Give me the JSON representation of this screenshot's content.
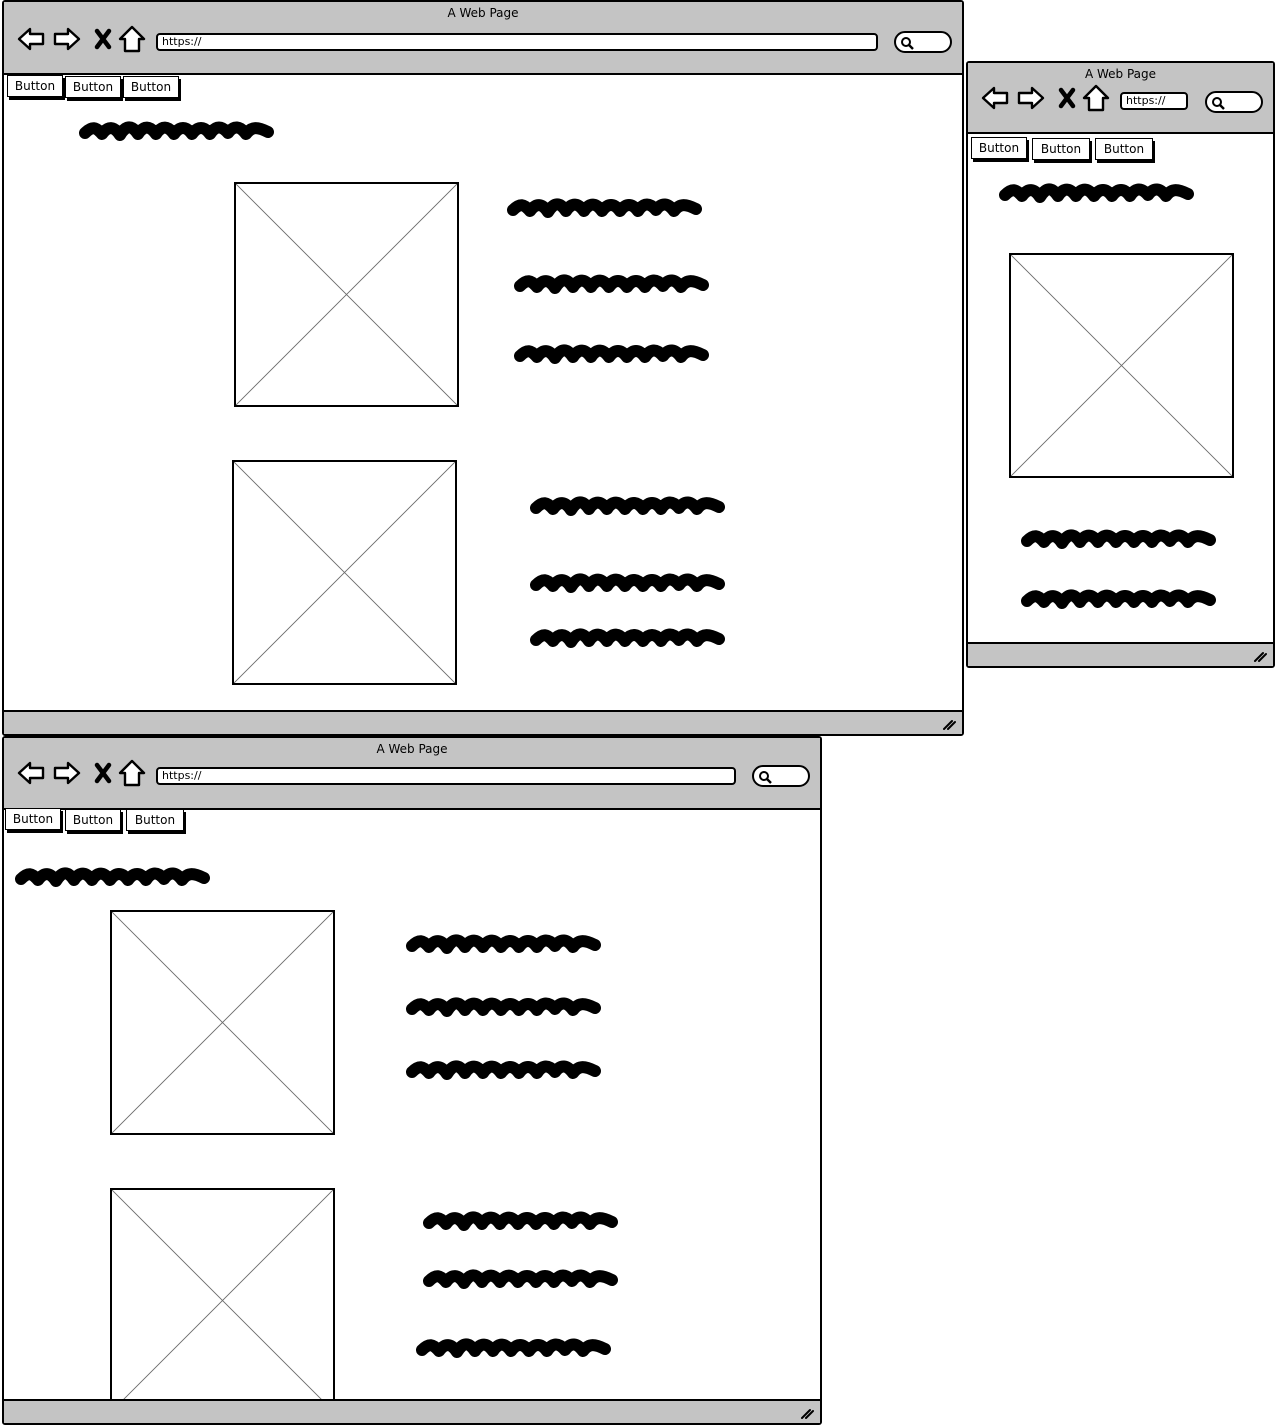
{
  "windows": [
    {
      "title": "A Web Page",
      "url": "https://",
      "buttons": [
        "Button",
        "Button",
        "Button"
      ]
    },
    {
      "title": "A Web Page",
      "url": "https://",
      "buttons": [
        "Button",
        "Button",
        "Button"
      ]
    },
    {
      "title": "A Web Page",
      "url": "https://",
      "buttons": [
        "Button",
        "Button",
        "Button"
      ]
    }
  ],
  "icons": {
    "back": "arrow-left-icon",
    "forward": "arrow-right-icon",
    "stop": "close-icon",
    "home": "home-icon",
    "search": "search-icon",
    "resize": "resize-grip-icon",
    "placeholder": "image-placeholder-icon"
  },
  "colors": {
    "chrome": "#c4c4c4",
    "ink": "#000000",
    "placeholder_cross": "#6b6b6b"
  }
}
